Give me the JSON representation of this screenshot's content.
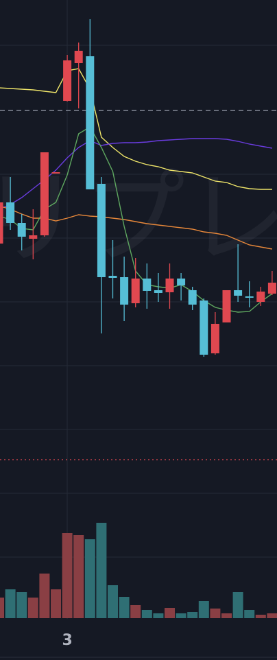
{
  "chart_data": {
    "type": "candlestick",
    "watermark": "リプレ",
    "categories": [
      null,
      null,
      null,
      null,
      null,
      null,
      "3",
      null,
      null,
      null,
      null,
      null,
      null,
      null,
      null,
      null,
      null,
      null,
      null,
      null,
      null,
      null,
      null,
      null,
      null
    ],
    "open": [
      645,
      705,
      675,
      652,
      657,
      747,
      853,
      908,
      918,
      732,
      598,
      596,
      558,
      594,
      577,
      574,
      594,
      577,
      562,
      485,
      530,
      577,
      568,
      560,
      572
    ],
    "high": [
      710,
      742,
      688,
      695,
      778,
      749,
      920,
      938,
      972,
      742,
      650,
      626,
      624,
      616,
      602,
      616,
      602,
      582,
      565,
      545,
      577,
      644,
      590,
      582,
      605
    ],
    "low": [
      640,
      665,
      635,
      622,
      655,
      747,
      852,
      842,
      724,
      514,
      565,
      532,
      552,
      550,
      560,
      550,
      562,
      548,
      480,
      483,
      530,
      560,
      552,
      554,
      570
    ],
    "close": [
      705,
      675,
      655,
      657,
      778,
      749,
      912,
      926,
      724,
      596,
      595,
      556,
      594,
      576,
      573,
      594,
      584,
      556,
      483,
      528,
      577,
      569,
      566,
      575,
      588
    ],
    "volume": [
      30,
      42,
      38,
      30,
      65,
      42,
      124,
      121,
      115,
      139,
      48,
      31,
      19,
      12,
      7,
      15,
      7,
      9,
      25,
      14,
      7,
      38,
      12,
      5,
      7
    ],
    "up_color": "#e04850",
    "down_color": "#56bed6",
    "volume_up_color": "#8a3f44",
    "volume_down_color": "#2f6f74",
    "series": [
      {
        "color": "#f0e66a",
        "values": [
          872,
          871,
          870,
          869,
          867,
          865,
          897,
          900,
          870,
          800,
          785,
          772,
          765,
          760,
          757,
          752,
          750,
          748,
          742,
          736,
          734,
          728,
          725,
          724,
          724
        ]
      },
      {
        "color": "#6a3ce0",
        "values": [
          695,
          702,
          712,
          725,
          738,
          752,
          770,
          785,
          795,
          788,
          791,
          792,
          792,
          793,
          795,
          796,
          797,
          798,
          798,
          798,
          797,
          794,
          790,
          787,
          784
        ]
      },
      {
        "color": "#e8883a",
        "values": [
          700,
          695,
          688,
          682,
          682,
          678,
          682,
          687,
          685,
          684,
          682,
          680,
          677,
          674,
          672,
          670,
          668,
          666,
          662,
          660,
          657,
          650,
          643,
          640,
          637
        ]
      },
      {
        "color": "#5fa860",
        "values": [
          685,
          680,
          667,
          665,
          695,
          705,
          745,
          805,
          815,
          785,
          750,
          670,
          605,
          585,
          582,
          580,
          585,
          575,
          562,
          552,
          548,
          545,
          546,
          560,
          572
        ]
      }
    ],
    "hlines": [
      {
        "value": 839,
        "color": "#9aa0ad",
        "style": "dashed"
      },
      {
        "value": 330,
        "color": "#e04850",
        "style": "dotted"
      }
    ],
    "ylim": [
      240,
      1000
    ],
    "volume_lim": [
      0,
      140
    ]
  }
}
